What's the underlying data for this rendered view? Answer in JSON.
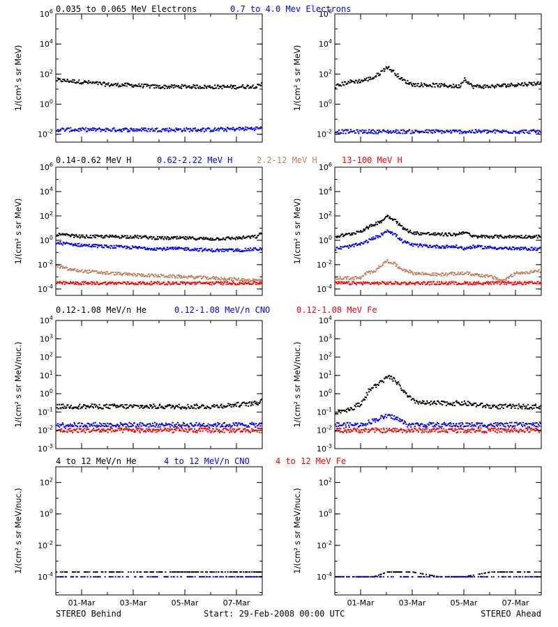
{
  "chart_data": [
    {
      "type": "scatter",
      "id": "p1",
      "instrument": "STEREO Behind",
      "ylabel": "1/(cm² s sr MeV)",
      "yscale": "log",
      "ylim": [
        0.003,
        1000000
      ],
      "yticks": [
        {
          "v": 0.01,
          "l": "10-2"
        },
        {
          "v": 1,
          "l": "100"
        },
        {
          "v": 100,
          "l": "102"
        },
        {
          "v": 10000,
          "l": "104"
        },
        {
          "v": 1000000,
          "l": "106"
        }
      ],
      "xlim": [
        0,
        8
      ],
      "series": [
        {
          "name": "0.035 to 0.065 MeV Electrons",
          "color": "#000000",
          "x": [
            0,
            1,
            2,
            3,
            4,
            5,
            6,
            7,
            7.9,
            8
          ],
          "y": [
            40,
            30,
            20,
            18,
            14,
            15,
            14,
            14,
            16,
            30
          ]
        },
        {
          "name": "0.7 to 4.0 Mev Electrons",
          "color": "#0000ff",
          "x": [
            0,
            2,
            4,
            6,
            8
          ],
          "y": [
            0.02,
            0.02,
            0.02,
            0.02,
            0.025
          ]
        }
      ]
    },
    {
      "type": "scatter",
      "id": "p2",
      "instrument": "STEREO Ahead",
      "ylabel": "1/(cm² s sr MeV)",
      "yscale": "log",
      "ylim": [
        0.003,
        1000000
      ],
      "yticks": [
        {
          "v": 0.01,
          "l": "10-2"
        },
        {
          "v": 1,
          "l": "100"
        },
        {
          "v": 100,
          "l": "102"
        },
        {
          "v": 10000,
          "l": "104"
        },
        {
          "v": 1000000,
          "l": "106"
        }
      ],
      "xlim": [
        0,
        8
      ],
      "series": [
        {
          "name": "0.035 to 0.065 MeV Electrons",
          "color": "#000000",
          "x": [
            0,
            0.5,
            1,
            1.5,
            1.8,
            2.0,
            2.3,
            2.6,
            3,
            4,
            4.8,
            5.0,
            5.3,
            6,
            7,
            8
          ],
          "y": [
            15,
            30,
            35,
            60,
            150,
            300,
            120,
            40,
            20,
            18,
            15,
            50,
            15,
            15,
            20,
            25
          ]
        },
        {
          "name": "0.7 to 4.0 Mev Electrons",
          "color": "#0000ff",
          "x": [
            0,
            2,
            4,
            6,
            8
          ],
          "y": [
            0.015,
            0.015,
            0.015,
            0.015,
            0.015
          ]
        }
      ]
    },
    {
      "type": "scatter",
      "id": "p3",
      "instrument": "STEREO Behind",
      "ylabel": "1/(cm² s sr MeV)",
      "yscale": "log",
      "ylim": [
        3e-05,
        1000000
      ],
      "yticks": [
        {
          "v": 0.0001,
          "l": "10-4"
        },
        {
          "v": 0.01,
          "l": "10-2"
        },
        {
          "v": 1,
          "l": "100"
        },
        {
          "v": 100,
          "l": "102"
        },
        {
          "v": 10000,
          "l": "104"
        },
        {
          "v": 1000000,
          "l": "106"
        }
      ],
      "xlim": [
        0,
        8
      ],
      "series": [
        {
          "name": "0.14-0.62 MeV H",
          "color": "#000000",
          "x": [
            0,
            1,
            2,
            3,
            4,
            5,
            6,
            7,
            7.8,
            8
          ],
          "y": [
            3,
            2,
            2,
            2,
            1.5,
            1.5,
            1.3,
            1.5,
            2,
            6
          ]
        },
        {
          "name": "0.62-2.22 MeV H",
          "color": "#0000ff",
          "x": [
            0,
            1,
            2,
            3,
            4,
            5,
            6,
            7,
            8
          ],
          "y": [
            0.6,
            0.4,
            0.3,
            0.25,
            0.2,
            0.2,
            0.15,
            0.15,
            0.2
          ]
        },
        {
          "name": "2.2-12 MeV H",
          "color": "#c08060",
          "x": [
            0,
            0.5,
            1,
            2,
            3,
            4,
            5,
            6,
            7,
            8
          ],
          "y": [
            0.008,
            0.004,
            0.003,
            0.002,
            0.0015,
            0.0012,
            0.001,
            0.0008,
            0.0006,
            0.0005
          ]
        },
        {
          "name": "13-100 MeV H",
          "color": "#ff0000",
          "x": [
            0,
            2,
            4,
            6,
            8
          ],
          "y": [
            0.0003,
            0.0003,
            0.0003,
            0.0003,
            0.0003
          ]
        }
      ]
    },
    {
      "type": "scatter",
      "id": "p4",
      "instrument": "STEREO Ahead",
      "ylabel": "1/(cm² s sr MeV)",
      "yscale": "log",
      "ylim": [
        3e-05,
        1000000
      ],
      "yticks": [
        {
          "v": 0.0001,
          "l": "10-4"
        },
        {
          "v": 0.01,
          "l": "10-2"
        },
        {
          "v": 1,
          "l": "100"
        },
        {
          "v": 100,
          "l": "102"
        },
        {
          "v": 10000,
          "l": "104"
        },
        {
          "v": 1000000,
          "l": "106"
        }
      ],
      "xlim": [
        0,
        8
      ],
      "series": [
        {
          "name": "0.14-0.62 MeV H",
          "color": "#000000",
          "x": [
            0,
            0.5,
            1,
            1.5,
            1.8,
            2.0,
            2.3,
            2.6,
            3,
            4,
            4.7,
            5.0,
            5.3,
            6,
            7,
            8
          ],
          "y": [
            2,
            3,
            6,
            20,
            40,
            100,
            50,
            10,
            4,
            3,
            3,
            5,
            2,
            2,
            2,
            2
          ]
        },
        {
          "name": "0.62-2.22 MeV H",
          "color": "#0000ff",
          "x": [
            0,
            0.5,
            1,
            1.5,
            1.8,
            2.0,
            2.3,
            2.6,
            3,
            4,
            4.7,
            5.0,
            5.3,
            6,
            7,
            8
          ],
          "y": [
            0.2,
            0.3,
            0.5,
            1.5,
            3,
            7,
            3,
            0.8,
            0.4,
            0.3,
            0.3,
            0.2,
            0.3,
            0.25,
            0.2,
            0.2
          ]
        },
        {
          "name": "2.2-12 MeV H",
          "color": "#c08060",
          "x": [
            1.0,
            1.2,
            1.5,
            1.8,
            2.0,
            2.2,
            2.5,
            2.8,
            3,
            4,
            5,
            5.5,
            6,
            6.5,
            7,
            8
          ],
          "y": [
            0.0008,
            0.002,
            0.003,
            0.01,
            0.02,
            0.015,
            0.005,
            0.003,
            0.002,
            0.0015,
            0.002,
            0.0015,
            0.001,
            0.0005,
            0.002,
            0.003
          ]
        },
        {
          "name": "13-100 MeV H",
          "color": "#ff0000",
          "x": [
            0,
            2,
            4,
            6,
            8
          ],
          "y": [
            0.0003,
            0.0003,
            0.0003,
            0.0003,
            0.0003
          ]
        }
      ]
    },
    {
      "type": "scatter",
      "id": "p5",
      "instrument": "STEREO Behind",
      "ylabel": "1/(cm² s sr MeV/nuc.)",
      "yscale": "log",
      "ylim": [
        0.001,
        10000
      ],
      "yticks": [
        {
          "v": 0.001,
          "l": "10-3"
        },
        {
          "v": 0.01,
          "l": "10-2"
        },
        {
          "v": 0.1,
          "l": "10-1"
        },
        {
          "v": 1,
          "l": "100"
        },
        {
          "v": 10,
          "l": "101"
        },
        {
          "v": 100,
          "l": "102"
        },
        {
          "v": 1000,
          "l": "103"
        },
        {
          "v": 10000,
          "l": "104"
        }
      ],
      "xlim": [
        0,
        8
      ],
      "series": [
        {
          "name": "0.12-1.08 MeV/n He",
          "color": "#000000",
          "x": [
            0,
            2,
            4,
            6,
            7.8,
            8
          ],
          "y": [
            0.2,
            0.2,
            0.2,
            0.2,
            0.3,
            0.6
          ]
        },
        {
          "name": "0.12-1.08 MeV/n CNO",
          "color": "#0000ff",
          "x": [
            0,
            2,
            4,
            6,
            8
          ],
          "y": [
            0.02,
            0.02,
            0.02,
            0.02,
            0.02
          ]
        },
        {
          "name": "0.12-1.08 MeV Fe",
          "color": "#ff0000",
          "x": [
            0,
            2,
            4,
            6,
            8
          ],
          "y": [
            0.01,
            0.01,
            0.01,
            0.01,
            0.01
          ]
        }
      ]
    },
    {
      "type": "scatter",
      "id": "p6",
      "instrument": "STEREO Ahead",
      "ylabel": "1/(cm² s sr MeV/nuc.)",
      "yscale": "log",
      "ylim": [
        0.001,
        10000
      ],
      "yticks": [
        {
          "v": 0.001,
          "l": "10-3"
        },
        {
          "v": 0.01,
          "l": "10-2"
        },
        {
          "v": 0.1,
          "l": "10-1"
        },
        {
          "v": 1,
          "l": "100"
        },
        {
          "v": 10,
          "l": "101"
        },
        {
          "v": 100,
          "l": "102"
        },
        {
          "v": 1000,
          "l": "103"
        },
        {
          "v": 10000,
          "l": "104"
        }
      ],
      "xlim": [
        0,
        8
      ],
      "series": [
        {
          "name": "0.12-1.08 MeV/n He",
          "color": "#000000",
          "x": [
            0,
            0.6,
            1.0,
            1.3,
            1.6,
            1.9,
            2.1,
            2.4,
            2.7,
            3.0,
            3.5,
            4,
            5,
            6,
            7,
            8
          ],
          "y": [
            0.1,
            0.15,
            0.3,
            1.5,
            3,
            6,
            8,
            4,
            1,
            0.4,
            0.3,
            0.3,
            0.3,
            0.2,
            0.2,
            0.2
          ]
        },
        {
          "name": "0.12-1.08 MeV/n CNO",
          "color": "#0000ff",
          "x": [
            0,
            1,
            1.8,
            2.0,
            2.3,
            2.8,
            4,
            6,
            8
          ],
          "y": [
            0.02,
            0.02,
            0.05,
            0.06,
            0.05,
            0.02,
            0.02,
            0.02,
            0.02
          ]
        },
        {
          "name": "0.12-1.08 MeV Fe",
          "color": "#ff0000",
          "x": [
            0,
            2,
            4,
            6,
            8
          ],
          "y": [
            0.01,
            0.01,
            0.01,
            0.01,
            0.01
          ]
        }
      ]
    },
    {
      "type": "scatter",
      "id": "p7",
      "instrument": "STEREO Behind",
      "ylabel": "1/(cm² s sr MeV/nuc.)",
      "yscale": "log",
      "ylim": [
        7e-06,
        1000
      ],
      "yticks": [
        {
          "v": 0.0001,
          "l": "10-4"
        },
        {
          "v": 0.01,
          "l": "10-2"
        },
        {
          "v": 1,
          "l": "100"
        },
        {
          "v": 100,
          "l": "102"
        }
      ],
      "xlim": [
        0,
        8
      ],
      "series": [
        {
          "name": "4 to 12 MeV/n He",
          "color": "#000000",
          "x": [
            0,
            2,
            4,
            6,
            8
          ],
          "y": [
            0.0002,
            0.0002,
            0.0002,
            0.0002,
            0.0002
          ]
        },
        {
          "name": "4 to 12 MeV/n CNO",
          "color": "#0000ff",
          "x": [
            0,
            2,
            4,
            6,
            8
          ],
          "y": [
            0.0001,
            0.0001,
            0.0001,
            0.0001,
            0.0001
          ]
        },
        {
          "name": "4 to 12 MeV Fe",
          "color": "#ff0000",
          "x": [],
          "y": []
        }
      ]
    },
    {
      "type": "scatter",
      "id": "p8",
      "instrument": "STEREO Ahead",
      "ylabel": "1/(cm² s sr MeV/nuc.)",
      "yscale": "log",
      "ylim": [
        7e-06,
        1000
      ],
      "yticks": [
        {
          "v": 0.0001,
          "l": "10-4"
        },
        {
          "v": 0.01,
          "l": "10-2"
        },
        {
          "v": 1,
          "l": "100"
        },
        {
          "v": 100,
          "l": "102"
        }
      ],
      "xlim": [
        0,
        8
      ],
      "series": [
        {
          "name": "4 to 12 MeV/n He",
          "color": "#000000",
          "x": [
            0,
            1.5,
            2,
            2.5,
            3,
            4,
            5,
            6,
            8
          ],
          "y": [
            0.0001,
            0.0001,
            0.0002,
            0.0002,
            0.0002,
            0.0001,
            0.0001,
            0.0002,
            0.0002
          ]
        },
        {
          "name": "4 to 12 MeV/n CNO",
          "color": "#0000ff",
          "x": [
            0,
            2,
            4,
            6,
            8
          ],
          "y": [
            0.0001,
            0.0001,
            0.0001,
            0.0001,
            0.0001
          ]
        },
        {
          "name": "4 to 12 MeV Fe",
          "color": "#ff0000",
          "x": [],
          "y": []
        }
      ]
    }
  ],
  "legends": {
    "row1": [
      {
        "text": "0.035 to 0.065 MeV Electrons",
        "color": "#000000"
      },
      {
        "text": "0.7 to 4.0 Mev Electrons",
        "color": "#0000ff"
      }
    ],
    "row2": [
      {
        "text": "0.14-0.62 MeV H",
        "color": "#000000"
      },
      {
        "text": "0.62-2.22 MeV H",
        "color": "#0000ff"
      },
      {
        "text": "2.2-12 MeV H",
        "color": "#c08060"
      },
      {
        "text": "13-100 MeV H",
        "color": "#ff0000"
      }
    ],
    "row3": [
      {
        "text": "0.12-1.08 MeV/n He",
        "color": "#000000"
      },
      {
        "text": "0.12-1.08 MeV/n CNO",
        "color": "#0000ff"
      },
      {
        "text": "0.12-1.08 MeV Fe",
        "color": "#ff0000"
      }
    ],
    "row4": [
      {
        "text": "4 to 12 MeV/n He",
        "color": "#000000"
      },
      {
        "text": "4 to 12 MeV/n CNO",
        "color": "#0000ff"
      },
      {
        "text": "4 to 12 MeV Fe",
        "color": "#ff0000"
      }
    ]
  },
  "x_axis": {
    "ticks": [
      {
        "v": 1,
        "l": "01-Mar"
      },
      {
        "v": 3,
        "l": "03-Mar"
      },
      {
        "v": 5,
        "l": "05-Mar"
      },
      {
        "v": 7,
        "l": "07-Mar"
      }
    ]
  },
  "footer": {
    "left": "STEREO Behind",
    "center": "Start: 29-Feb-2008 00:00 UTC",
    "right": "STEREO Ahead"
  }
}
